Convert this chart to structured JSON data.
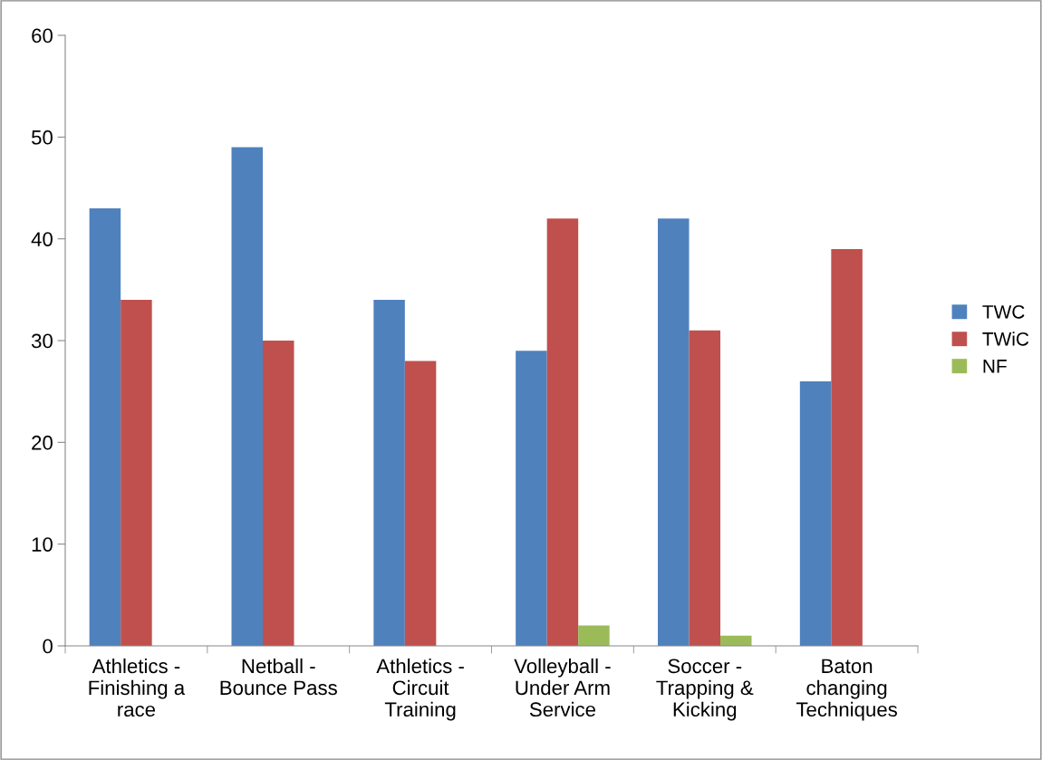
{
  "chart_data": {
    "type": "bar",
    "categories": [
      "Athletics - Finishing a race",
      "Netball - Bounce Pass",
      "Athletics - Circuit Training",
      "Volleyball - Under Arm Service",
      "Soccer - Trapping & Kicking",
      "Baton changing Techniques"
    ],
    "series": [
      {
        "name": "TWC",
        "color": "#4f81bd",
        "values": [
          43,
          49,
          34,
          29,
          42,
          26
        ]
      },
      {
        "name": "TWiC",
        "color": "#c0504d",
        "values": [
          34,
          30,
          28,
          42,
          31,
          39
        ]
      },
      {
        "name": "NF",
        "color": "#9bbb59",
        "values": [
          0,
          0,
          0,
          2,
          1,
          0
        ]
      }
    ],
    "ylim": [
      0,
      60
    ],
    "yticks": [
      0,
      10,
      20,
      30,
      40,
      50,
      60
    ],
    "grid": false,
    "legend": "right"
  }
}
